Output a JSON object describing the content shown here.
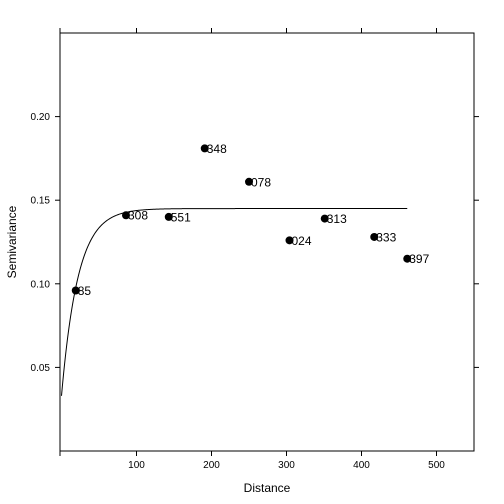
{
  "chart_data": {
    "type": "scatter",
    "xlabel": "Distance",
    "ylabel": "Semivariance",
    "xlim": [
      -2,
      550
    ],
    "ylim": [
      0,
      0.25
    ],
    "x_ticks": [
      {
        "value": 100,
        "label": "100"
      },
      {
        "value": 200,
        "label": "200"
      },
      {
        "value": 300,
        "label": "300"
      },
      {
        "value": 400,
        "label": "400"
      },
      {
        "value": 500,
        "label": "500"
      }
    ],
    "y_ticks": [
      {
        "value": 0.05,
        "label": "0.05"
      },
      {
        "value": 0.1,
        "label": "0.10"
      },
      {
        "value": 0.15,
        "label": "0.15"
      },
      {
        "value": 0.2,
        "label": "0.20"
      }
    ],
    "points": [
      {
        "x": 19,
        "y": 0.096,
        "label": "85"
      },
      {
        "x": 86,
        "y": 0.141,
        "label": "308"
      },
      {
        "x": 143,
        "y": 0.14,
        "label": "551"
      },
      {
        "x": 191,
        "y": 0.181,
        "label": "348"
      },
      {
        "x": 250,
        "y": 0.161,
        "label": "078"
      },
      {
        "x": 304,
        "y": 0.126,
        "label": "024"
      },
      {
        "x": 351,
        "y": 0.139,
        "label": "313"
      },
      {
        "x": 417,
        "y": 0.128,
        "label": "333"
      },
      {
        "x": 461,
        "y": 0.115,
        "label": "397"
      }
    ],
    "fitted_curve": {
      "type": "exponential",
      "nugget": 0.033,
      "psill": 0.112,
      "range": 22,
      "x_end": 461
    },
    "grid": false,
    "legend": "none"
  }
}
